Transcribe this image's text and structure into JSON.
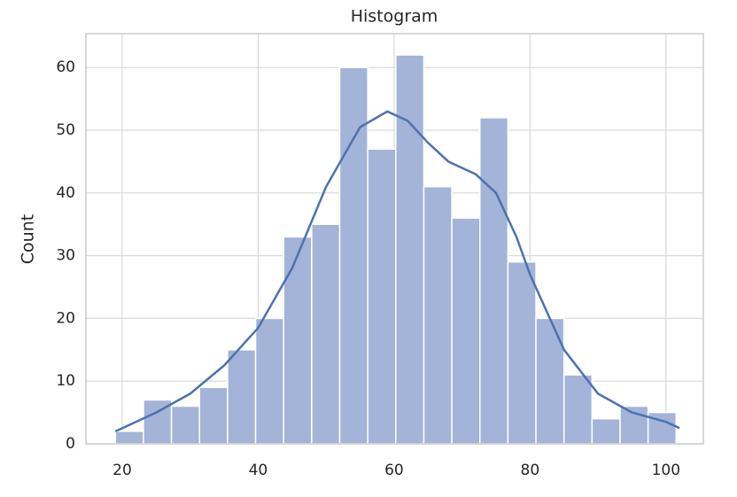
{
  "chart_data": {
    "type": "histogram",
    "title": "Histogram",
    "y_label": "Count",
    "bins": [
      19,
      23.125,
      27.25,
      31.375,
      35.5,
      39.625,
      43.75,
      47.875,
      52,
      56.125,
      60.25,
      64.375,
      68.5,
      72.625,
      76.75,
      80.875,
      85,
      89.125,
      93.25,
      97.375,
      101.5
    ],
    "values": [
      2,
      7,
      6,
      9,
      15,
      20,
      33,
      35,
      60,
      47,
      62,
      41,
      36,
      52,
      29,
      20,
      11,
      4,
      6,
      5
    ],
    "color": "#a3b4d8",
    "edge_color": "#ffffff",
    "kde": {
      "color": "#4c72b0",
      "x": [
        19,
        25,
        30,
        35,
        40,
        45,
        50,
        55,
        59,
        62,
        65,
        68,
        72,
        75,
        78,
        80,
        85,
        90,
        95,
        100,
        102
      ],
      "y": [
        2,
        5,
        8,
        12.5,
        18.5,
        28,
        41,
        50.5,
        53,
        51.5,
        48,
        45,
        43,
        40,
        33,
        27,
        15,
        8,
        5,
        3.5,
        2.5
      ]
    },
    "xlim": [
      14.66,
      105.5
    ],
    "ylim": [
      0,
      65.4
    ],
    "xticks": [
      20,
      40,
      60,
      80,
      100
    ],
    "yticks": [
      0,
      10,
      20,
      30,
      40,
      50,
      60
    ],
    "grid": true
  }
}
